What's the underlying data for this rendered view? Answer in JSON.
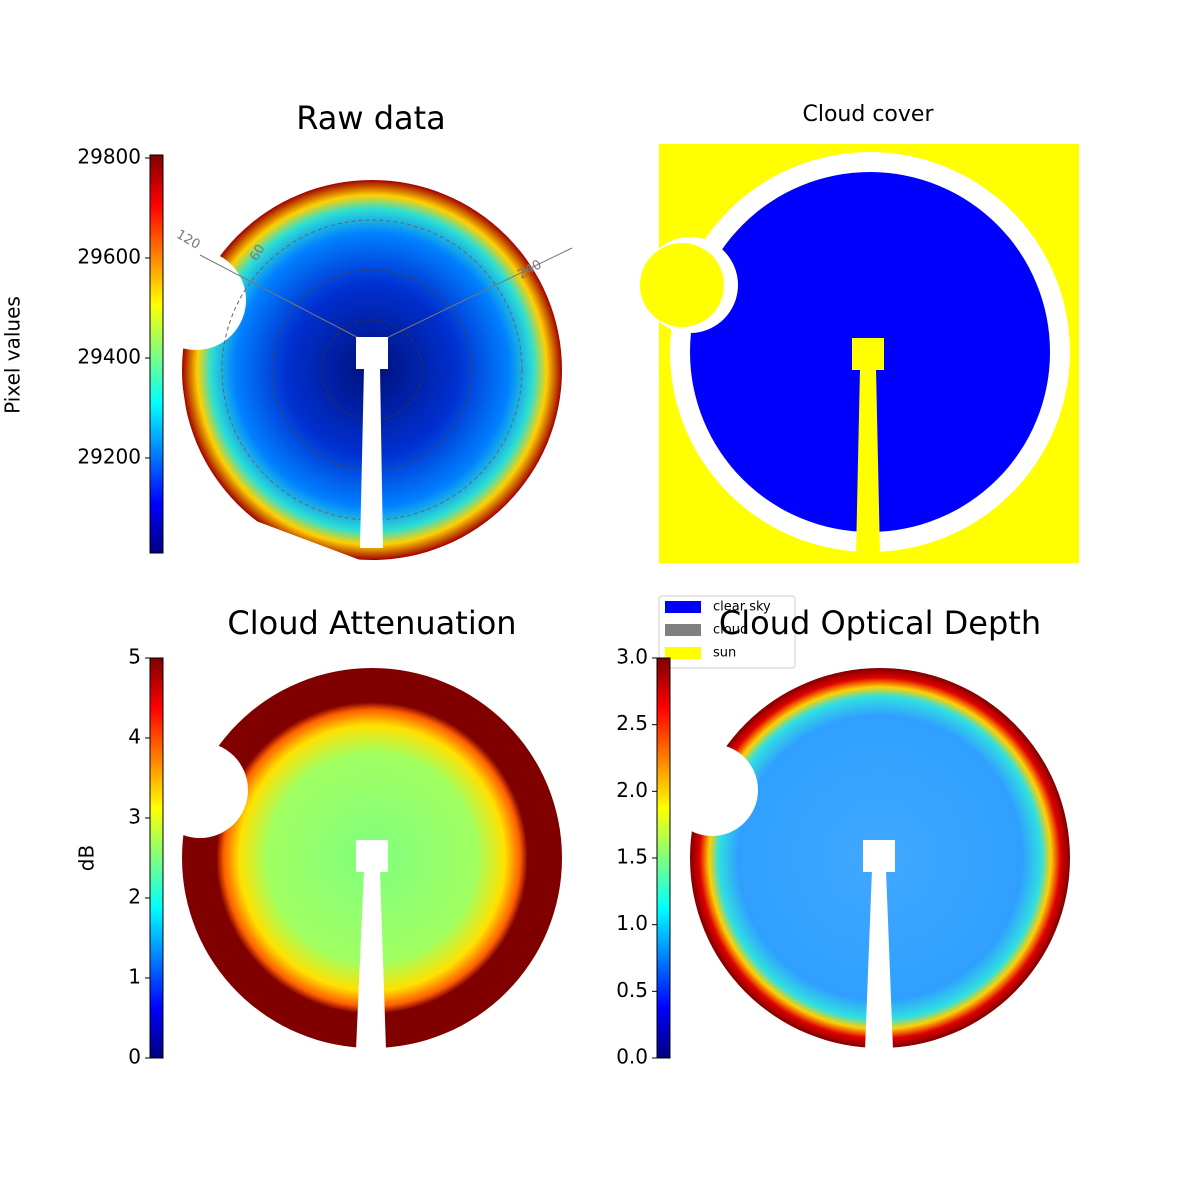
{
  "chart_data": [
    {
      "type": "image",
      "title": "Raw data",
      "colormap": "jet",
      "colorbar": {
        "label": "Pixel values",
        "lim": [
          29010,
          29806
        ],
        "ticks": [
          29200,
          29400,
          29600,
          29800
        ]
      },
      "annotations": [
        "120",
        "60",
        "240"
      ]
    },
    {
      "type": "image",
      "title": "Cloud cover",
      "legend": [
        {
          "name": "clear sky",
          "color": "#0000ff"
        },
        {
          "name": "cloud",
          "color": "#808080"
        },
        {
          "name": "sun",
          "color": "#ffff00"
        }
      ]
    },
    {
      "type": "image",
      "title": "Cloud Attenuation",
      "colormap": "jet",
      "colorbar": {
        "label": "dB",
        "lim": [
          0,
          5
        ],
        "ticks": [
          0,
          1,
          2,
          3,
          4,
          5
        ]
      }
    },
    {
      "type": "image",
      "title": "Cloud Optical Depth",
      "colormap": "jet",
      "colorbar": {
        "lim": [
          0,
          3
        ],
        "ticks": [
          {
            "value": 0,
            "label": "0.0"
          },
          0.5,
          {
            "value": 1,
            "label": "1.0"
          },
          1.5,
          {
            "value": 2,
            "label": "2.0"
          },
          2.5,
          {
            "value": 3,
            "label": "3.0"
          }
        ]
      }
    }
  ]
}
